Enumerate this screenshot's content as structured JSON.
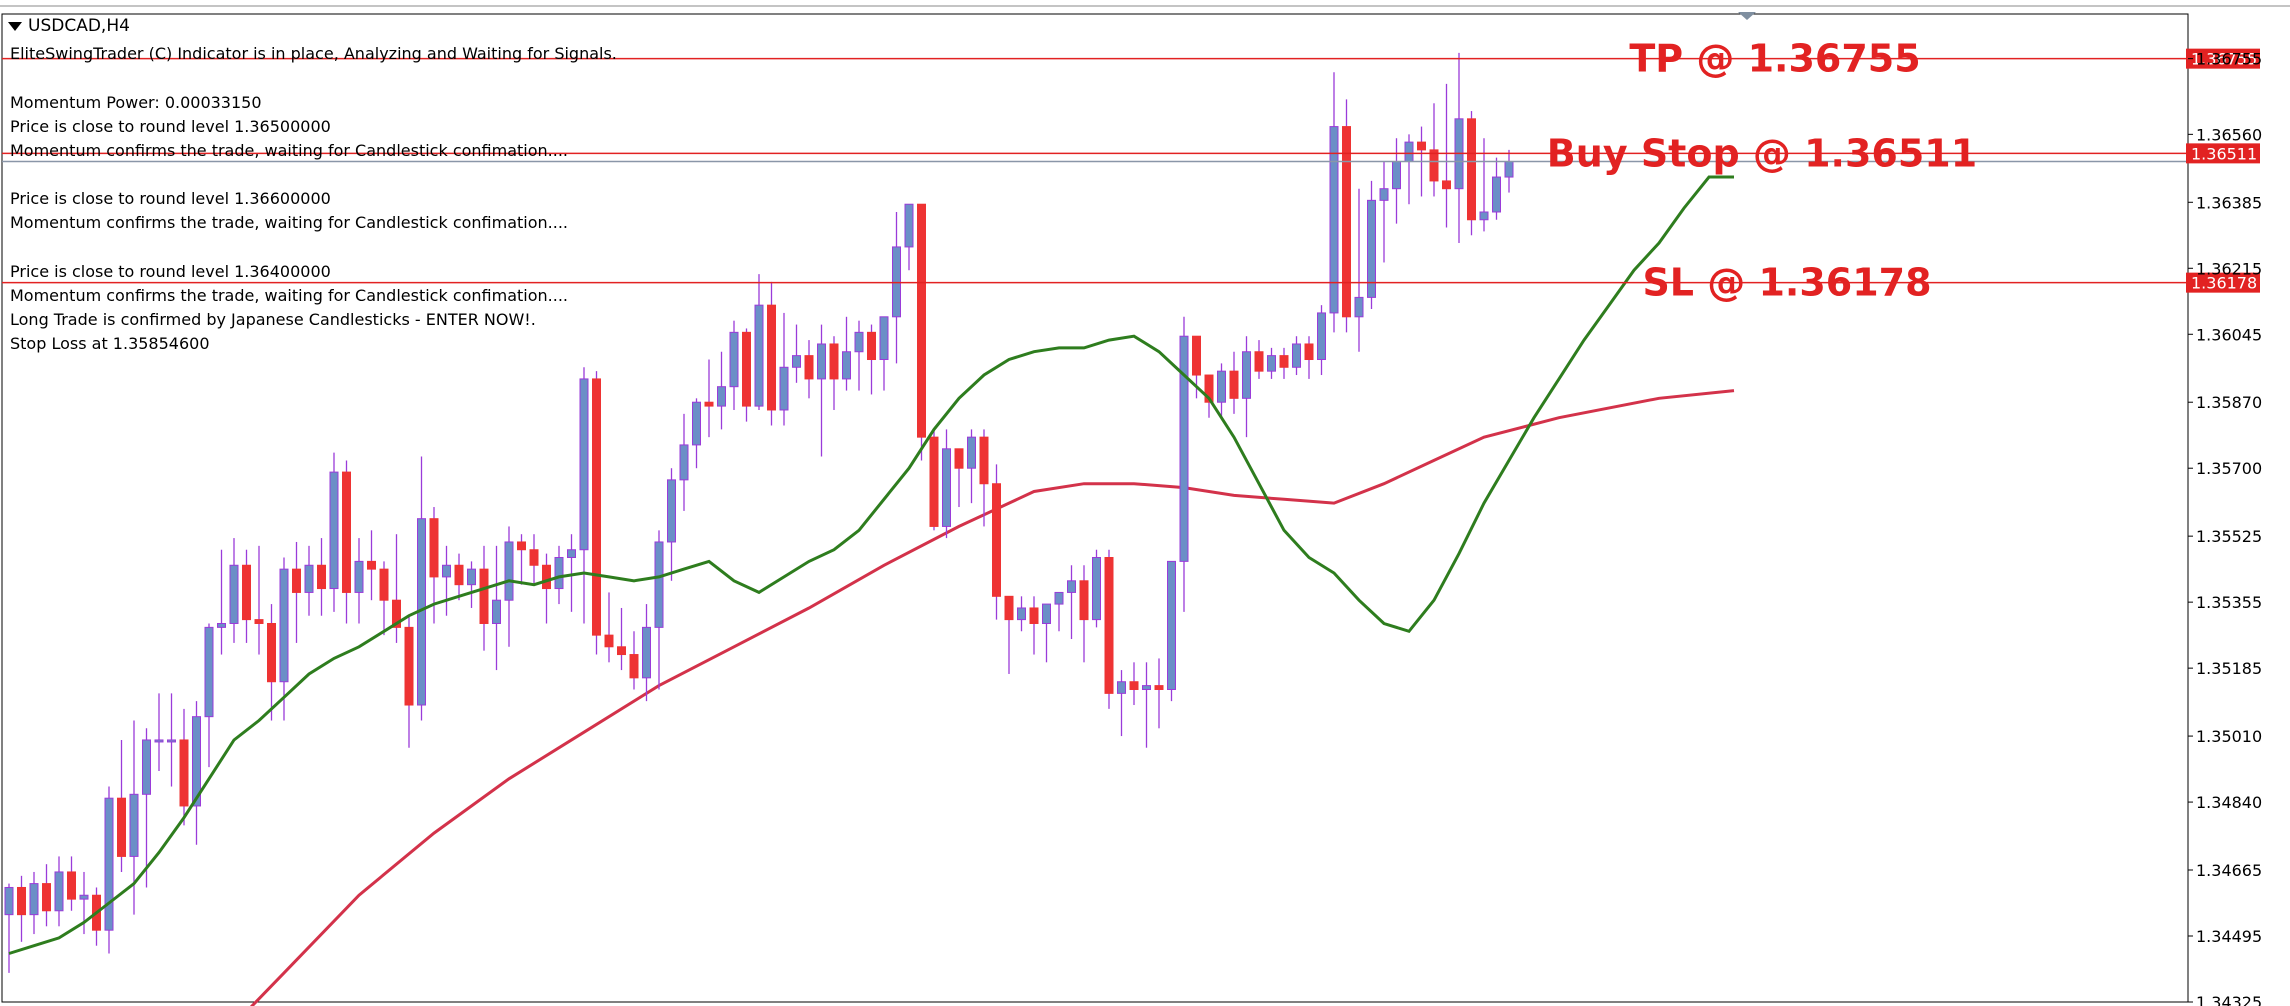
{
  "chart_header": {
    "symbol": "USDCAD,H4",
    "indicator_status": "EliteSwingTrader (C) Indicator is in place, Analyzing and Waiting for Signals."
  },
  "info_lines": [
    "Momentum Power: 0.00033150",
    "Price is close to round level 1.36500000",
    "Momentum confirms the trade, waiting for Candlestick confimation....",
    "Price is close to round level 1.36600000",
    "Momentum confirms the trade, waiting for Candlestick confimation....",
    "Price is close to round level 1.36400000",
    "Momentum confirms the trade, waiting for Candlestick confimation....",
    "Long Trade is confirmed by Japanese Candlesticks - ENTER NOW!.",
    "Stop Loss at 1.35854600"
  ],
  "colors": {
    "bull": "#6b8fc7",
    "bear": "#ee3333",
    "wick": "#9a3bd9",
    "fast_ma": "#2e7d1e",
    "slow_ma": "#d3324a",
    "level_line": "#e22222",
    "label_bg": "#e22222"
  },
  "chart_data": {
    "type": "candlestick",
    "y_axis": {
      "min": 1.34325,
      "max": 1.3687,
      "tick_labels": [
        "1.36755",
        "1.36560",
        "1.36385",
        "1.36215",
        "1.36045",
        "1.35870",
        "1.35700",
        "1.35525",
        "1.35355",
        "1.35185",
        "1.35010",
        "1.34840",
        "1.34665",
        "1.34495",
        "1.34325"
      ]
    },
    "levels": [
      {
        "name": "TP",
        "price": 1.36755,
        "label": "TP @ 1.36755",
        "axis_label": "1.36755"
      },
      {
        "name": "Buy Stop",
        "price": 1.36511,
        "label": "Buy Stop @ 1.36511",
        "axis_label": "1.36511"
      },
      {
        "name": "SL",
        "price": 1.36178,
        "label": "SL @ 1.36178",
        "axis_label": "1.36178"
      }
    ],
    "current_price": 1.3649,
    "candles": [
      [
        1.3455,
        1.3462,
        1.344,
        1.3463
      ],
      [
        1.3462,
        1.3455,
        1.3448,
        1.3465
      ],
      [
        1.3455,
        1.3463,
        1.345,
        1.3466
      ],
      [
        1.3463,
        1.3456,
        1.3452,
        1.3468
      ],
      [
        1.3456,
        1.3466,
        1.3452,
        1.347
      ],
      [
        1.3466,
        1.3459,
        1.3456,
        1.347
      ],
      [
        1.3459,
        1.346,
        1.345,
        1.3466
      ],
      [
        1.346,
        1.3451,
        1.3447,
        1.3462
      ],
      [
        1.3451,
        1.3485,
        1.3445,
        1.3488
      ],
      [
        1.3485,
        1.347,
        1.3466,
        1.35
      ],
      [
        1.347,
        1.3486,
        1.3455,
        1.3505
      ],
      [
        1.3486,
        1.35,
        1.3462,
        1.3503
      ],
      [
        1.35,
        1.35,
        1.3492,
        1.3512
      ],
      [
        1.35,
        1.35,
        1.3488,
        1.3512
      ],
      [
        1.35,
        1.3483,
        1.3478,
        1.3508
      ],
      [
        1.3483,
        1.3506,
        1.3473,
        1.351
      ],
      [
        1.3506,
        1.3529,
        1.3493,
        1.353
      ],
      [
        1.3529,
        1.353,
        1.3522,
        1.3549
      ],
      [
        1.353,
        1.3545,
        1.3525,
        1.3552
      ],
      [
        1.3545,
        1.3531,
        1.3525,
        1.3549
      ],
      [
        1.3531,
        1.353,
        1.3522,
        1.355
      ],
      [
        1.353,
        1.3515,
        1.3505,
        1.3535
      ],
      [
        1.3515,
        1.3544,
        1.3505,
        1.3547
      ],
      [
        1.3544,
        1.3538,
        1.3525,
        1.3551
      ],
      [
        1.3538,
        1.3545,
        1.3532,
        1.355
      ],
      [
        1.3545,
        1.3539,
        1.3532,
        1.3552
      ],
      [
        1.3539,
        1.3569,
        1.3533,
        1.3574
      ],
      [
        1.3569,
        1.3538,
        1.353,
        1.3572
      ],
      [
        1.3538,
        1.3546,
        1.353,
        1.3552
      ],
      [
        1.3546,
        1.3544,
        1.3536,
        1.3554
      ],
      [
        1.3544,
        1.3536,
        1.3527,
        1.3546
      ],
      [
        1.3536,
        1.3529,
        1.3525,
        1.3553
      ],
      [
        1.3529,
        1.3509,
        1.3498,
        1.3532
      ],
      [
        1.3509,
        1.3557,
        1.3505,
        1.3573
      ],
      [
        1.3557,
        1.3542,
        1.353,
        1.356
      ],
      [
        1.3542,
        1.3545,
        1.3532,
        1.355
      ],
      [
        1.3545,
        1.354,
        1.3536,
        1.3548
      ],
      [
        1.354,
        1.3544,
        1.3534,
        1.3546
      ],
      [
        1.3544,
        1.353,
        1.3523,
        1.355
      ],
      [
        1.353,
        1.3536,
        1.3518,
        1.355
      ],
      [
        1.3536,
        1.3551,
        1.3524,
        1.3555
      ],
      [
        1.3551,
        1.3549,
        1.354,
        1.3553
      ],
      [
        1.3549,
        1.3545,
        1.354,
        1.3553
      ],
      [
        1.3545,
        1.3539,
        1.353,
        1.3548
      ],
      [
        1.3539,
        1.3547,
        1.3535,
        1.355
      ],
      [
        1.3547,
        1.3549,
        1.3533,
        1.3553
      ],
      [
        1.3549,
        1.3593,
        1.353,
        1.3596
      ],
      [
        1.3593,
        1.3527,
        1.3522,
        1.3595
      ],
      [
        1.3527,
        1.3524,
        1.352,
        1.3538
      ],
      [
        1.3524,
        1.3522,
        1.3518,
        1.3534
      ],
      [
        1.3522,
        1.3516,
        1.3513,
        1.3528
      ],
      [
        1.3516,
        1.3529,
        1.351,
        1.3535
      ],
      [
        1.3529,
        1.3551,
        1.3513,
        1.3554
      ],
      [
        1.3551,
        1.3567,
        1.3541,
        1.357
      ],
      [
        1.3567,
        1.3576,
        1.3559,
        1.3584
      ],
      [
        1.3576,
        1.3587,
        1.357,
        1.3588
      ],
      [
        1.3587,
        1.3586,
        1.3578,
        1.3598
      ],
      [
        1.3586,
        1.3591,
        1.358,
        1.36
      ],
      [
        1.3591,
        1.3605,
        1.3585,
        1.3608
      ],
      [
        1.3605,
        1.3586,
        1.3582,
        1.3606
      ],
      [
        1.3586,
        1.3612,
        1.3585,
        1.362
      ],
      [
        1.3612,
        1.3585,
        1.3581,
        1.3618
      ],
      [
        1.3585,
        1.3596,
        1.3581,
        1.361
      ],
      [
        1.3596,
        1.3599,
        1.3592,
        1.3607
      ],
      [
        1.3599,
        1.3593,
        1.3588,
        1.3603
      ],
      [
        1.3593,
        1.3602,
        1.3573,
        1.3607
      ],
      [
        1.3602,
        1.3593,
        1.3585,
        1.3604
      ],
      [
        1.3593,
        1.36,
        1.359,
        1.3609
      ],
      [
        1.36,
        1.3605,
        1.359,
        1.3608
      ],
      [
        1.3605,
        1.3598,
        1.3589,
        1.3607
      ],
      [
        1.3598,
        1.3609,
        1.359,
        1.3609
      ],
      [
        1.3609,
        1.3627,
        1.3597,
        1.3636
      ],
      [
        1.3627,
        1.3638,
        1.3621,
        1.3637
      ],
      [
        1.3638,
        1.3578,
        1.3572,
        1.3637
      ],
      [
        1.3578,
        1.3555,
        1.3554,
        1.358
      ],
      [
        1.3555,
        1.3575,
        1.3552,
        1.358
      ],
      [
        1.3575,
        1.357,
        1.356,
        1.3575
      ],
      [
        1.357,
        1.3578,
        1.3561,
        1.358
      ],
      [
        1.3578,
        1.3566,
        1.3555,
        1.358
      ],
      [
        1.3566,
        1.3537,
        1.3531,
        1.3571
      ],
      [
        1.3537,
        1.3531,
        1.3517,
        1.3537
      ],
      [
        1.3531,
        1.3534,
        1.3528,
        1.3537
      ],
      [
        1.3534,
        1.353,
        1.3522,
        1.3537
      ],
      [
        1.353,
        1.3535,
        1.352,
        1.3535
      ],
      [
        1.3535,
        1.3538,
        1.3528,
        1.3538
      ],
      [
        1.3538,
        1.3541,
        1.3526,
        1.3545
      ],
      [
        1.3541,
        1.3531,
        1.352,
        1.3545
      ],
      [
        1.3531,
        1.3547,
        1.3529,
        1.3549
      ],
      [
        1.3547,
        1.3512,
        1.3508,
        1.3549
      ],
      [
        1.3512,
        1.3515,
        1.3501,
        1.3518
      ],
      [
        1.3515,
        1.3513,
        1.3509,
        1.352
      ],
      [
        1.3513,
        1.3514,
        1.3498,
        1.352
      ],
      [
        1.3514,
        1.3513,
        1.3503,
        1.3521
      ],
      [
        1.3513,
        1.3546,
        1.351,
        1.3546
      ],
      [
        1.3546,
        1.3604,
        1.3533,
        1.3609
      ],
      [
        1.3604,
        1.3594,
        1.3588,
        1.3604
      ],
      [
        1.3594,
        1.3587,
        1.3583,
        1.3594
      ],
      [
        1.3587,
        1.3595,
        1.3583,
        1.3597
      ],
      [
        1.3595,
        1.3588,
        1.3584,
        1.36
      ],
      [
        1.3588,
        1.36,
        1.3578,
        1.3604
      ],
      [
        1.36,
        1.3595,
        1.3593,
        1.3603
      ],
      [
        1.3595,
        1.3599,
        1.3593,
        1.3601
      ],
      [
        1.3599,
        1.3596,
        1.3593,
        1.3601
      ],
      [
        1.3596,
        1.3602,
        1.3594,
        1.3604
      ],
      [
        1.3602,
        1.3598,
        1.3593,
        1.3604
      ],
      [
        1.3598,
        1.361,
        1.3594,
        1.3612
      ],
      [
        1.361,
        1.3658,
        1.3605,
        1.3672
      ],
      [
        1.3658,
        1.3609,
        1.3605,
        1.3665
      ],
      [
        1.3609,
        1.3614,
        1.36,
        1.3642
      ],
      [
        1.3614,
        1.3639,
        1.3611,
        1.3644
      ],
      [
        1.3639,
        1.3642,
        1.3623,
        1.3649
      ],
      [
        1.3642,
        1.3649,
        1.3633,
        1.3655
      ],
      [
        1.3649,
        1.3654,
        1.3638,
        1.3656
      ],
      [
        1.3654,
        1.3652,
        1.364,
        1.3658
      ],
      [
        1.3652,
        1.3644,
        1.364,
        1.3664
      ],
      [
        1.3644,
        1.3642,
        1.3632,
        1.3669
      ],
      [
        1.3642,
        1.366,
        1.3628,
        1.3677
      ],
      [
        1.366,
        1.3634,
        1.363,
        1.3662
      ],
      [
        1.3634,
        1.3636,
        1.3631,
        1.3655
      ],
      [
        1.3636,
        1.3645,
        1.3634,
        1.365
      ],
      [
        1.3645,
        1.3649,
        1.3641,
        1.3652
      ]
    ],
    "fast_ma": [
      1.3445,
      1.3447,
      1.3449,
      1.3453,
      1.3458,
      1.3463,
      1.3471,
      1.348,
      1.349,
      1.35,
      1.3505,
      1.3511,
      1.3517,
      1.3521,
      1.3524,
      1.3528,
      1.3532,
      1.3535,
      1.3537,
      1.3539,
      1.3541,
      1.354,
      1.3542,
      1.3543,
      1.3542,
      1.3541,
      1.3542,
      1.3544,
      1.3546,
      1.3541,
      1.3538,
      1.3542,
      1.3546,
      1.3549,
      1.3554,
      1.357,
      1.358,
      1.3588,
      1.3594,
      1.3598,
      1.36,
      1.3601,
      1.3601,
      1.3603,
      1.3604,
      1.36,
      1.3594,
      1.3588,
      1.3578,
      1.3566,
      1.3554,
      1.3547,
      1.3543,
      1.3536,
      1.353,
      1.3528,
      1.3536,
      1.3548,
      1.3561,
      1.3572,
      1.3583,
      1.3593,
      1.3603,
      1.3612,
      1.3621,
      1.3628,
      1.3637,
      1.3645,
      1.3645
    ],
    "fast_ma_x": [
      0,
      2,
      4,
      6,
      8,
      10,
      12,
      14,
      16,
      18,
      20,
      22,
      24,
      26,
      28,
      30,
      32,
      34,
      36,
      38,
      40,
      42,
      44,
      46,
      48,
      50,
      52,
      54,
      56,
      58,
      60,
      62,
      64,
      66,
      68,
      72,
      74,
      76,
      78,
      80,
      82,
      84,
      86,
      88,
      90,
      92,
      94,
      96,
      98,
      100,
      102,
      104,
      106,
      108,
      110,
      112,
      114,
      116,
      118,
      120,
      122,
      124,
      126,
      128,
      130,
      132,
      134,
      136,
      138
    ],
    "slow_ma": [
      1.342,
      1.344,
      1.346,
      1.3476,
      1.349,
      1.3502,
      1.3514,
      1.3524,
      1.3534,
      1.3545,
      1.3555,
      1.3564,
      1.3566,
      1.3566,
      1.3565,
      1.3563,
      1.3562,
      1.3561,
      1.3566,
      1.3572,
      1.3578,
      1.3583,
      1.3588,
      1.359
    ],
    "slow_ma_x": [
      16,
      22,
      28,
      34,
      40,
      46,
      52,
      58,
      64,
      70,
      76,
      82,
      86,
      90,
      94,
      98,
      102,
      106,
      110,
      114,
      118,
      124,
      132,
      138
    ]
  }
}
